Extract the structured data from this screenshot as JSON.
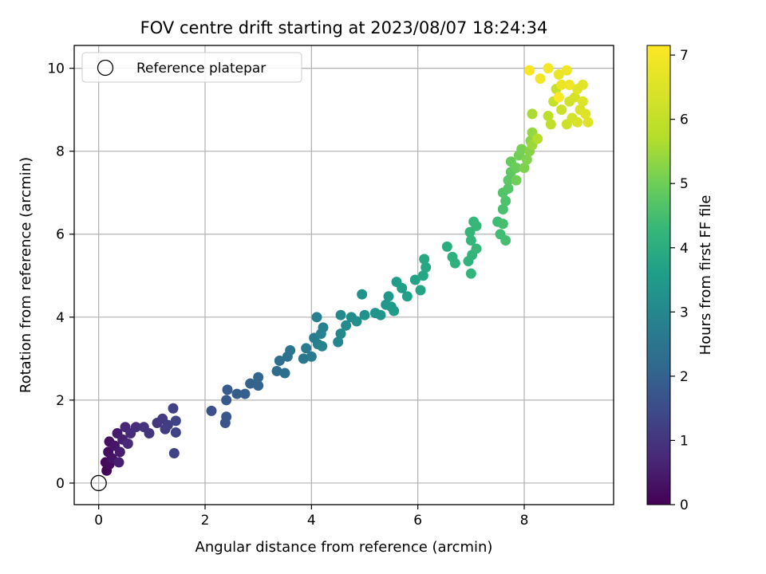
{
  "chart_data": {
    "type": "scatter",
    "title": "FOV centre drift starting at 2023/08/07 18:24:34",
    "xlabel": "Angular distance from reference (arcmin)",
    "ylabel": "Rotation from reference (arcmin)",
    "xlim": [
      -0.46,
      9.68
    ],
    "ylim": [
      -0.52,
      10.55
    ],
    "xticks": [
      0,
      2,
      4,
      6,
      8
    ],
    "yticks": [
      0,
      2,
      4,
      6,
      8,
      10
    ],
    "grid": true,
    "legend": {
      "placement": "top-left",
      "entries": [
        "Reference platepar"
      ]
    },
    "reference_point": {
      "x": 0,
      "y": 0,
      "label": "Reference platepar"
    },
    "colorbar": {
      "label": "Hours from first FF file",
      "colormap": "viridis",
      "range": [
        0,
        7.15
      ],
      "ticks": [
        0,
        1,
        2,
        3,
        4,
        5,
        6,
        7
      ]
    },
    "series": [
      {
        "points": [
          [
            0.15,
            0.3,
            0.1
          ],
          [
            0.13,
            0.5,
            0.15
          ],
          [
            0.2,
            0.45,
            0.2
          ],
          [
            0.18,
            0.75,
            0.25
          ],
          [
            0.2,
            1.0,
            0.3
          ],
          [
            0.25,
            0.6,
            0.35
          ],
          [
            0.3,
            0.9,
            0.4
          ],
          [
            0.35,
            1.2,
            0.45
          ],
          [
            0.4,
            0.75,
            0.5
          ],
          [
            0.38,
            0.5,
            0.55
          ],
          [
            0.45,
            1.05,
            0.6
          ],
          [
            0.5,
            1.35,
            0.7
          ],
          [
            0.55,
            0.95,
            0.75
          ],
          [
            0.6,
            1.2,
            0.8
          ],
          [
            0.7,
            1.35,
            0.85
          ],
          [
            0.85,
            1.35,
            0.95
          ],
          [
            0.95,
            1.2,
            1.0
          ],
          [
            1.1,
            1.45,
            1.05
          ],
          [
            1.2,
            1.55,
            1.1
          ],
          [
            1.25,
            1.3,
            1.15
          ],
          [
            1.3,
            1.4,
            1.2
          ],
          [
            1.4,
            1.8,
            1.25
          ],
          [
            1.45,
            1.5,
            1.3
          ],
          [
            1.45,
            1.22,
            1.3
          ],
          [
            1.42,
            0.72,
            1.3
          ],
          [
            2.12,
            1.74,
            1.6
          ],
          [
            2.38,
            1.45,
            1.7
          ],
          [
            2.4,
            1.6,
            1.75
          ],
          [
            2.4,
            2.0,
            1.8
          ],
          [
            2.42,
            2.25,
            1.85
          ],
          [
            2.6,
            2.15,
            1.9
          ],
          [
            2.75,
            2.15,
            1.95
          ],
          [
            2.85,
            2.4,
            2.0
          ],
          [
            3.0,
            2.35,
            2.05
          ],
          [
            3.0,
            2.55,
            2.1
          ],
          [
            3.35,
            2.7,
            2.25
          ],
          [
            3.4,
            2.95,
            2.3
          ],
          [
            3.5,
            2.65,
            2.35
          ],
          [
            3.55,
            3.05,
            2.4
          ],
          [
            3.6,
            3.2,
            2.45
          ],
          [
            3.85,
            3.0,
            2.55
          ],
          [
            3.9,
            3.25,
            2.6
          ],
          [
            4.0,
            3.05,
            2.65
          ],
          [
            4.05,
            3.5,
            2.7
          ],
          [
            4.12,
            3.35,
            2.75
          ],
          [
            4.1,
            4.0,
            2.8
          ],
          [
            4.18,
            3.6,
            2.85
          ],
          [
            4.22,
            3.75,
            2.85
          ],
          [
            4.2,
            3.3,
            2.9
          ],
          [
            4.5,
            3.4,
            3.0
          ],
          [
            4.55,
            3.6,
            3.05
          ],
          [
            4.55,
            4.05,
            3.05
          ],
          [
            4.65,
            3.8,
            3.1
          ],
          [
            4.75,
            4.0,
            3.15
          ],
          [
            4.85,
            3.9,
            3.2
          ],
          [
            4.95,
            4.55,
            3.25
          ],
          [
            5.0,
            4.05,
            3.25
          ],
          [
            5.2,
            4.1,
            3.3
          ],
          [
            5.3,
            4.05,
            3.35
          ],
          [
            5.4,
            4.3,
            3.4
          ],
          [
            5.45,
            4.5,
            3.45
          ],
          [
            5.5,
            4.25,
            3.5
          ],
          [
            5.55,
            4.15,
            3.5
          ],
          [
            5.6,
            4.85,
            3.55
          ],
          [
            5.7,
            4.7,
            3.6
          ],
          [
            5.8,
            4.5,
            3.65
          ],
          [
            5.95,
            4.9,
            3.7
          ],
          [
            6.05,
            4.65,
            3.75
          ],
          [
            6.1,
            5.0,
            3.8
          ],
          [
            6.12,
            5.4,
            3.85
          ],
          [
            6.15,
            5.2,
            3.85
          ],
          [
            6.55,
            5.7,
            4.0
          ],
          [
            6.65,
            5.45,
            4.05
          ],
          [
            6.7,
            5.3,
            4.1
          ],
          [
            6.95,
            5.35,
            4.15
          ],
          [
            7.0,
            5.05,
            4.2
          ],
          [
            7.02,
            5.5,
            4.2
          ],
          [
            7.0,
            5.85,
            4.25
          ],
          [
            6.98,
            6.05,
            4.25
          ],
          [
            7.05,
            6.3,
            4.3
          ],
          [
            7.1,
            6.2,
            4.3
          ],
          [
            7.1,
            5.65,
            4.3
          ],
          [
            7.5,
            6.3,
            4.4
          ],
          [
            7.55,
            6.0,
            4.45
          ],
          [
            7.6,
            6.25,
            4.5
          ],
          [
            7.65,
            5.85,
            4.5
          ],
          [
            7.6,
            6.6,
            4.55
          ],
          [
            7.65,
            6.8,
            4.6
          ],
          [
            7.6,
            7.0,
            4.65
          ],
          [
            7.7,
            7.1,
            4.7
          ],
          [
            7.7,
            7.3,
            4.75
          ],
          [
            7.75,
            7.5,
            4.8
          ],
          [
            7.75,
            7.75,
            4.9
          ],
          [
            7.85,
            7.6,
            4.95
          ],
          [
            7.85,
            7.3,
            5.0
          ],
          [
            7.9,
            7.9,
            5.05
          ],
          [
            7.95,
            8.05,
            5.1
          ],
          [
            8.0,
            7.6,
            5.15
          ],
          [
            8.05,
            7.8,
            5.2
          ],
          [
            8.1,
            8.0,
            5.25
          ],
          [
            8.12,
            8.25,
            5.3
          ],
          [
            8.15,
            8.45,
            5.4
          ],
          [
            8.15,
            8.15,
            5.45
          ],
          [
            8.15,
            8.9,
            5.6
          ],
          [
            8.25,
            8.3,
            5.7
          ],
          [
            8.45,
            8.85,
            5.85
          ],
          [
            8.5,
            8.65,
            5.95
          ],
          [
            8.55,
            9.2,
            6.0
          ],
          [
            8.6,
            9.5,
            6.1
          ],
          [
            8.7,
            9.0,
            6.15
          ],
          [
            8.8,
            8.65,
            6.2
          ],
          [
            8.85,
            9.2,
            6.25
          ],
          [
            8.9,
            8.8,
            6.3
          ],
          [
            8.95,
            9.3,
            6.35
          ],
          [
            9.0,
            8.7,
            6.4
          ],
          [
            9.05,
            9.0,
            6.45
          ],
          [
            9.1,
            9.2,
            6.5
          ],
          [
            9.15,
            8.9,
            6.55
          ],
          [
            9.2,
            8.7,
            6.55
          ],
          [
            9.1,
            9.6,
            6.6
          ],
          [
            9.0,
            9.5,
            6.6
          ],
          [
            8.65,
            9.85,
            6.75
          ],
          [
            8.7,
            9.6,
            6.8
          ],
          [
            8.8,
            9.95,
            6.85
          ],
          [
            8.85,
            9.6,
            6.9
          ],
          [
            8.3,
            9.75,
            6.95
          ],
          [
            8.45,
            10.0,
            7.0
          ],
          [
            8.1,
            9.95,
            7.05
          ],
          [
            8.65,
            9.3,
            7.1
          ]
        ]
      }
    ]
  }
}
